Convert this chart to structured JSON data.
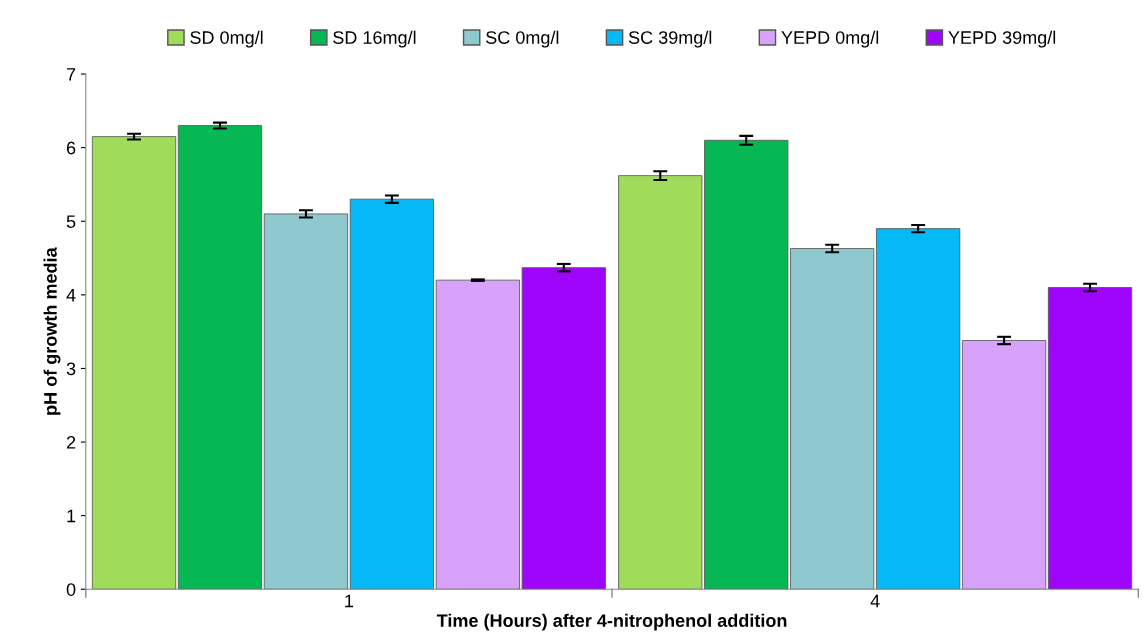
{
  "chart_data": {
    "type": "bar",
    "xlabel": "Time (Hours) after 4-nitrophenol addition",
    "ylabel": "pH of growth media",
    "categories": [
      "1",
      "4"
    ],
    "series": [
      {
        "name": "SD 0mg/l",
        "color": "#a0dc5a",
        "values": [
          6.15,
          5.62
        ],
        "errors": [
          0.04,
          0.06
        ]
      },
      {
        "name": "SD 16mg/l",
        "color": "#06b853",
        "values": [
          6.3,
          6.1
        ],
        "errors": [
          0.04,
          0.06
        ]
      },
      {
        "name": "SC 0mg/l",
        "color": "#8fc8cf",
        "values": [
          5.1,
          4.63
        ],
        "errors": [
          0.05,
          0.05
        ]
      },
      {
        "name": "SC 39mg/l",
        "color": "#04b9f5",
        "values": [
          5.3,
          4.9
        ],
        "errors": [
          0.05,
          0.05
        ]
      },
      {
        "name": "YEPD 0mg/l",
        "color": "#d7a2fa",
        "values": [
          4.2,
          3.38
        ],
        "errors": [
          0.01,
          0.05
        ]
      },
      {
        "name": "YEPD 39mg/l",
        "color": "#a005fb",
        "values": [
          4.37,
          4.1
        ],
        "errors": [
          0.05,
          0.05
        ]
      }
    ],
    "ylim": [
      0,
      7
    ],
    "yticks": [
      0,
      1,
      2,
      3,
      4,
      5,
      6,
      7
    ],
    "grid": false,
    "legend": "top"
  }
}
